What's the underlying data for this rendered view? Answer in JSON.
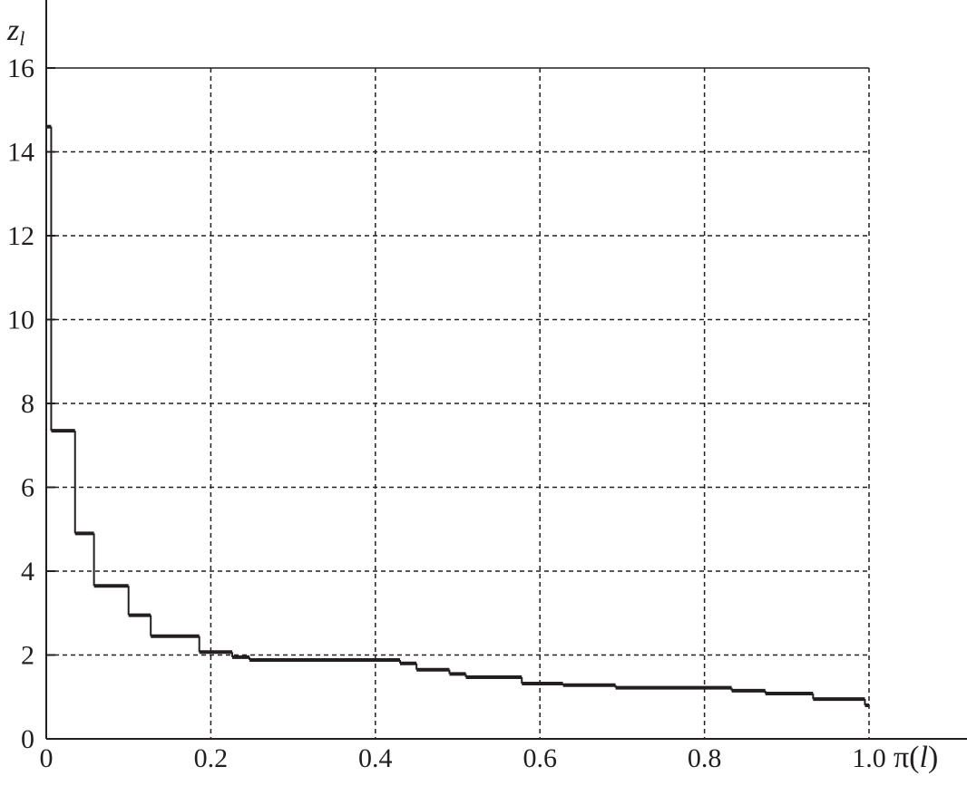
{
  "chart_data": {
    "type": "line",
    "step": true,
    "title": "",
    "ylabel": {
      "base": "z",
      "sub": "l"
    },
    "xlabel": {
      "pre": "π(",
      "var": "l",
      "post": ")"
    },
    "xlim": [
      0,
      1.0
    ],
    "ylim": [
      0,
      16
    ],
    "grid": true,
    "xticks": [
      "0",
      "0.2",
      "0.4",
      "0.6",
      "0.8",
      "1.0"
    ],
    "yticks": [
      "0",
      "2",
      "4",
      "6",
      "8",
      "10",
      "12",
      "14",
      "16"
    ],
    "color": "#231f20",
    "steps": [
      {
        "x0": 0.0,
        "x1": 0.006,
        "y": 14.6
      },
      {
        "x0": 0.006,
        "x1": 0.035,
        "y": 7.35
      },
      {
        "x0": 0.035,
        "x1": 0.058,
        "y": 4.9
      },
      {
        "x0": 0.058,
        "x1": 0.1,
        "y": 3.65
      },
      {
        "x0": 0.1,
        "x1": 0.127,
        "y": 2.95
      },
      {
        "x0": 0.127,
        "x1": 0.186,
        "y": 2.45
      },
      {
        "x0": 0.186,
        "x1": 0.226,
        "y": 2.07
      },
      {
        "x0": 0.226,
        "x1": 0.247,
        "y": 1.95
      },
      {
        "x0": 0.247,
        "x1": 0.43,
        "y": 1.88
      },
      {
        "x0": 0.43,
        "x1": 0.45,
        "y": 1.8
      },
      {
        "x0": 0.45,
        "x1": 0.49,
        "y": 1.65
      },
      {
        "x0": 0.49,
        "x1": 0.51,
        "y": 1.55
      },
      {
        "x0": 0.51,
        "x1": 0.578,
        "y": 1.47
      },
      {
        "x0": 0.578,
        "x1": 0.628,
        "y": 1.32
      },
      {
        "x0": 0.628,
        "x1": 0.692,
        "y": 1.28
      },
      {
        "x0": 0.692,
        "x1": 0.833,
        "y": 1.22
      },
      {
        "x0": 0.833,
        "x1": 0.874,
        "y": 1.15
      },
      {
        "x0": 0.874,
        "x1": 0.932,
        "y": 1.08
      },
      {
        "x0": 0.932,
        "x1": 0.995,
        "y": 0.95
      },
      {
        "x0": 0.995,
        "x1": 1.0,
        "y": 0.8
      }
    ]
  }
}
